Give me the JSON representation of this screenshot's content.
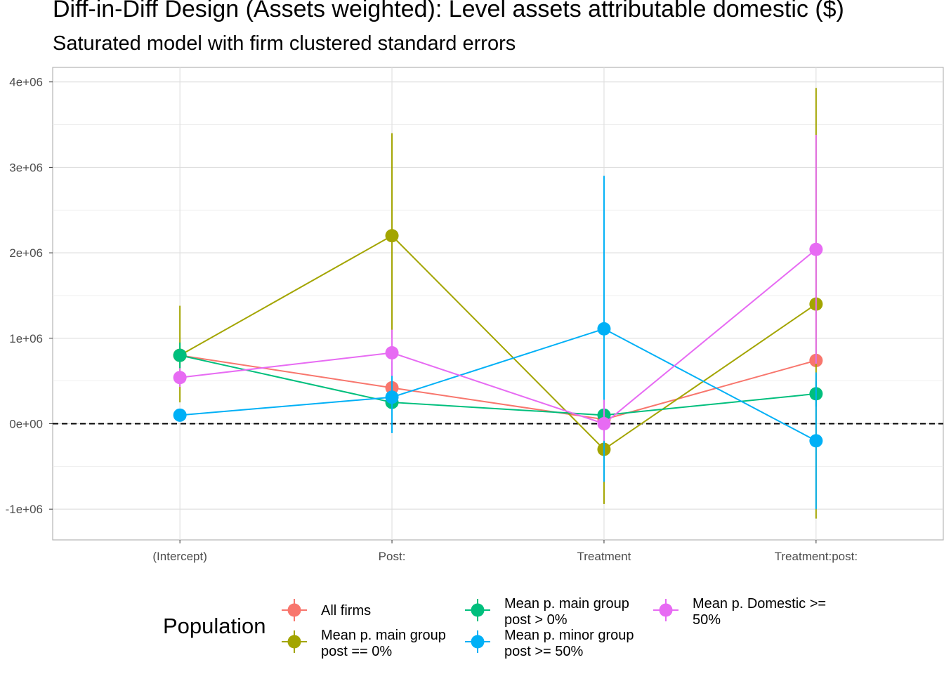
{
  "title": "Diff-in-Diff Design (Assets weighted): Level assets attributable domestic  ($)",
  "subtitle": "Saturated model with firm clustered standard errors",
  "chart_data": {
    "type": "line",
    "categories": [
      "(Intercept)",
      "Post:",
      "Treatment",
      "Treatment:post:"
    ],
    "y_ticks": [
      {
        "value": -1000000,
        "label": "-1e+06"
      },
      {
        "value": 0,
        "label": "0e+00"
      },
      {
        "value": 1000000,
        "label": "1e+06"
      },
      {
        "value": 2000000,
        "label": "2e+06"
      },
      {
        "value": 3000000,
        "label": "3e+06"
      },
      {
        "value": 4000000,
        "label": "4e+06"
      }
    ],
    "ylim": [
      -1360000,
      4170000
    ],
    "reference_line": 0,
    "grid": true,
    "legend_position": "bottom",
    "legend_title": "Population",
    "series": [
      {
        "name": "All firms",
        "color": "#F8766D",
        "values": [
          800000,
          420000,
          50000,
          740000
        ],
        "lower": [
          800000,
          420000,
          50000,
          740000
        ],
        "upper": [
          800000,
          420000,
          50000,
          740000
        ]
      },
      {
        "name": "Mean p. main group\npost == 0%",
        "color": "#A3A500",
        "values": [
          800000,
          2200000,
          -300000,
          1400000
        ],
        "lower": [
          250000,
          1000000,
          -940000,
          -1110000
        ],
        "upper": [
          1380000,
          3400000,
          280000,
          3930000
        ]
      },
      {
        "name": "Mean p. main group\npost > 0%",
        "color": "#00BF7D",
        "values": [
          800000,
          250000,
          100000,
          350000
        ],
        "lower": [
          650000,
          200000,
          50000,
          200000
        ],
        "upper": [
          950000,
          300000,
          150000,
          500000
        ]
      },
      {
        "name": "Mean p. minor group\npost >= 50%",
        "color": "#00B0F6",
        "values": [
          100000,
          310000,
          1110000,
          -200000
        ],
        "lower": [
          100000,
          -110000,
          -680000,
          -1000000
        ],
        "upper": [
          100000,
          730000,
          2900000,
          600000
        ]
      },
      {
        "name": "Mean p. Domestic >=\n50%",
        "color": "#E76BF3",
        "values": [
          540000,
          830000,
          0,
          2040000
        ],
        "lower": [
          430000,
          560000,
          -200000,
          700000
        ],
        "upper": [
          650000,
          1100000,
          280000,
          3380000
        ]
      }
    ]
  }
}
